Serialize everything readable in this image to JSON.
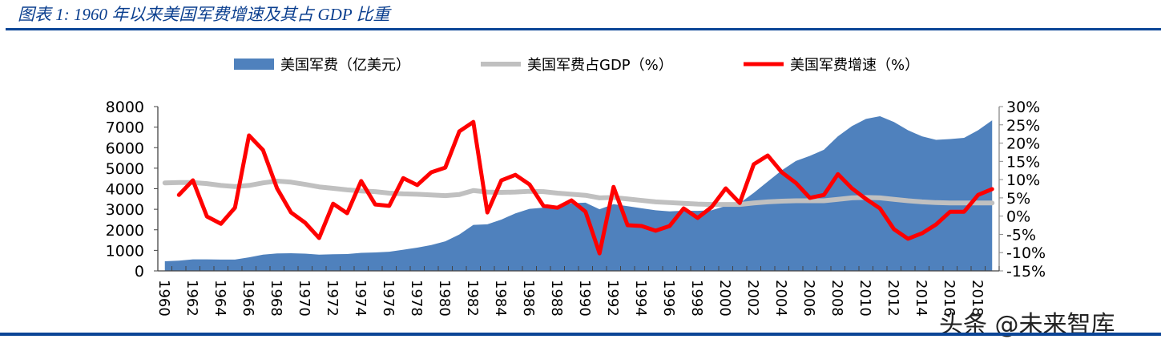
{
  "title": "图表 1:  1960 年以来美国军费增速及其占 GDP 比重",
  "watermark": "头条 @未来智库",
  "chart_data": {
    "type": "area+line",
    "title": "",
    "legend_placement": "top",
    "grid": false,
    "categories": [
      1960,
      1961,
      1962,
      1963,
      1964,
      1965,
      1966,
      1967,
      1968,
      1969,
      1970,
      1971,
      1972,
      1973,
      1974,
      1975,
      1976,
      1977,
      1978,
      1979,
      1980,
      1981,
      1982,
      1983,
      1984,
      1985,
      1986,
      1987,
      1988,
      1989,
      1990,
      1991,
      1992,
      1993,
      1994,
      1995,
      1996,
      1997,
      1998,
      1999,
      2000,
      2001,
      2002,
      2003,
      2004,
      2005,
      2006,
      2007,
      2008,
      2009,
      2010,
      2011,
      2012,
      2013,
      2014,
      2015,
      2016,
      2017,
      2018,
      2019
    ],
    "x_tick_labels": [
      "1960",
      "1962",
      "1964",
      "1966",
      "1968",
      "1970",
      "1972",
      "1974",
      "1976",
      "1978",
      "1980",
      "1982",
      "1984",
      "1986",
      "1988",
      "1990",
      "1992",
      "1994",
      "1996",
      "1998",
      "2000",
      "2002",
      "2004",
      "2006",
      "2008",
      "2010",
      "2012",
      "2014",
      "2016",
      "2018"
    ],
    "left_axis": {
      "ylim": [
        0,
        8000
      ],
      "ticks": [
        "0",
        "1000",
        "2000",
        "3000",
        "4000",
        "5000",
        "6000",
        "7000",
        "8000"
      ]
    },
    "right_axis": {
      "ylim": [
        -15,
        30
      ],
      "ticks": [
        "-15%",
        "-10%",
        "-5%",
        "0%",
        "5%",
        "10%",
        "15%",
        "20%",
        "25%",
        "30%"
      ]
    },
    "series": [
      {
        "name": "美国军费（亿美元）",
        "type": "area",
        "axis": "left",
        "color": "#4f81bd",
        "values": [
          470,
          500,
          560,
          560,
          550,
          550,
          660,
          790,
          850,
          860,
          840,
          790,
          810,
          820,
          880,
          900,
          930,
          1030,
          1130,
          1260,
          1440,
          1770,
          2240,
          2270,
          2500,
          2800,
          3020,
          3080,
          3100,
          3300,
          3320,
          3000,
          3250,
          3150,
          3050,
          2950,
          2900,
          2930,
          2920,
          2950,
          3160,
          3300,
          3800,
          4350,
          4900,
          5350,
          5600,
          5900,
          6550,
          7050,
          7400,
          7530,
          7250,
          6850,
          6550,
          6380,
          6420,
          6480,
          6850,
          7330
        ]
      },
      {
        "name": "美国军费占GDP（%）",
        "type": "line",
        "axis": "right",
        "color": "#c0c0c0",
        "values": [
          9.1,
          9.2,
          9.2,
          8.9,
          8.4,
          8.1,
          8.4,
          9.1,
          9.6,
          9.3,
          8.7,
          8.0,
          7.6,
          7.2,
          6.9,
          6.7,
          6.3,
          6.1,
          6.0,
          5.8,
          5.6,
          5.9,
          7.0,
          6.6,
          6.5,
          6.6,
          6.8,
          6.7,
          6.3,
          6.0,
          5.7,
          5.0,
          5.1,
          4.7,
          4.3,
          3.9,
          3.7,
          3.5,
          3.3,
          3.2,
          3.2,
          3.2,
          3.6,
          3.9,
          4.1,
          4.2,
          4.2,
          4.2,
          4.6,
          5.0,
          5.1,
          5.0,
          4.6,
          4.2,
          3.9,
          3.7,
          3.6,
          3.6,
          3.6,
          3.6
        ]
      },
      {
        "name": "美国军费增速（%）",
        "type": "line",
        "axis": "right",
        "color": "#ff0000",
        "values": [
          null,
          5.8,
          9.8,
          -0.1,
          -2.1,
          2.3,
          22.1,
          18.1,
          7.6,
          1.0,
          -1.8,
          -6.0,
          3.4,
          0.8,
          9.6,
          3.2,
          2.8,
          10.4,
          8.5,
          12.0,
          13.3,
          23.2,
          25.8,
          1.0,
          9.8,
          11.3,
          8.7,
          2.8,
          2.3,
          4.3,
          1.2,
          -10.2,
          8.0,
          -2.5,
          -2.7,
          -4.0,
          -2.7,
          2.1,
          -0.5,
          2.5,
          7.6,
          3.6,
          14.2,
          16.6,
          12.0,
          9.1,
          5.0,
          5.8,
          11.5,
          7.6,
          4.7,
          2.1,
          -3.6,
          -6.2,
          -4.7,
          -2.3,
          1.2,
          1.2,
          5.8,
          7.4
        ]
      }
    ]
  }
}
